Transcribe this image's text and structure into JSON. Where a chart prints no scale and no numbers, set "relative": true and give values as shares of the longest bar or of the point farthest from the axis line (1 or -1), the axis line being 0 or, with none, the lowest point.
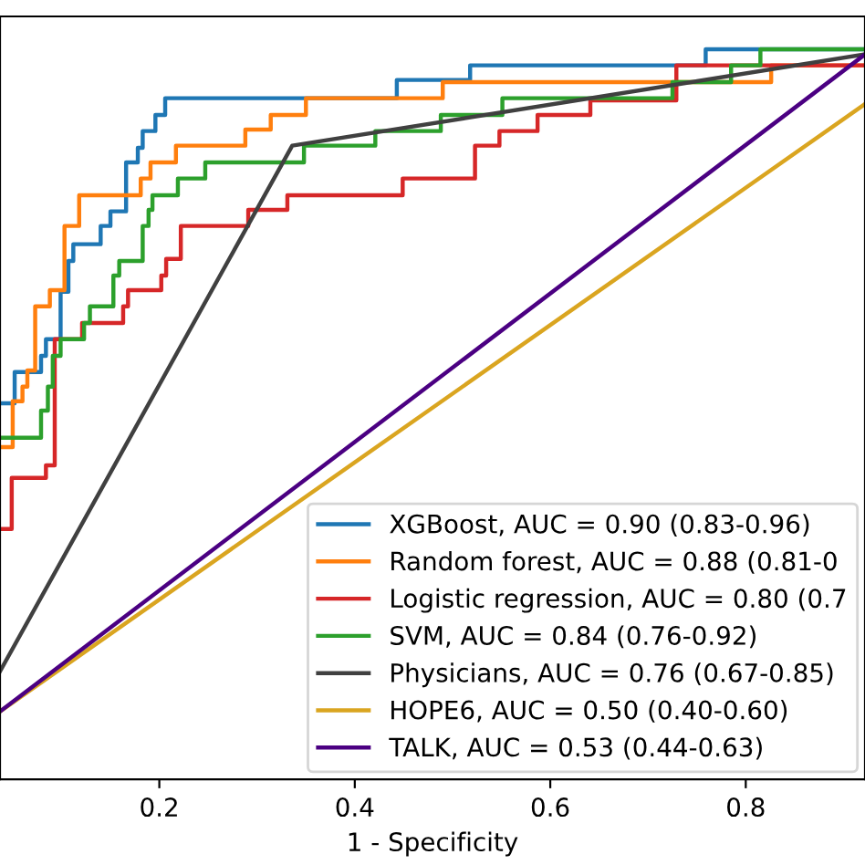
{
  "chart_data": {
    "type": "step",
    "xlabel": "1 - Specificity",
    "relative": true,
    "tick_labels": "x",
    "grid": false,
    "legend": "bottom right",
    "xlim": [
      0.037,
      0.922
    ],
    "xticks": [
      0.2,
      0.4,
      0.6,
      0.8
    ],
    "series": [
      {
        "name": "XGBoost, AUC = 0.90 (0.83-0.96)",
        "color": "#1f77b4",
        "x": [
          0.037,
          0.052,
          0.079,
          0.084,
          0.099,
          0.107,
          0.112,
          0.14,
          0.15,
          0.166,
          0.178,
          0.183,
          0.196,
          0.206,
          0.443,
          0.518,
          0.759,
          0.922
        ],
        "values": [
          0.515,
          0.558,
          0.58,
          0.603,
          0.668,
          0.71,
          0.733,
          0.758,
          0.778,
          0.845,
          0.865,
          0.888,
          0.91,
          0.933,
          0.958,
          0.978,
          1.0,
          1.0
        ]
      },
      {
        "name": "Random forest, AUC = 0.88 (0.81-0",
        "color": "#ff7f0e",
        "x": [
          0.037,
          0.05,
          0.06,
          0.065,
          0.073,
          0.088,
          0.103,
          0.118,
          0.181,
          0.191,
          0.217,
          0.288,
          0.314,
          0.35,
          0.49,
          0.826,
          0.922
        ],
        "values": [
          0.455,
          0.518,
          0.538,
          0.56,
          0.648,
          0.67,
          0.758,
          0.8,
          0.823,
          0.845,
          0.868,
          0.89,
          0.91,
          0.933,
          0.955,
          0.978,
          0.978
        ]
      },
      {
        "name": "Logistic regression, AUC = 0.80 (0.7",
        "color": "#d62728",
        "x": [
          0.037,
          0.049,
          0.084,
          0.093,
          0.121,
          0.163,
          0.168,
          0.202,
          0.207,
          0.222,
          0.291,
          0.331,
          0.449,
          0.523,
          0.548,
          0.587,
          0.641,
          0.729,
          0.922
        ],
        "values": [
          0.343,
          0.413,
          0.43,
          0.603,
          0.625,
          0.648,
          0.67,
          0.69,
          0.713,
          0.758,
          0.78,
          0.8,
          0.823,
          0.868,
          0.888,
          0.91,
          0.93,
          0.978,
          0.978
        ]
      },
      {
        "name": "SVM, AUC = 0.84 (0.76-0.92)",
        "color": "#2ca02c",
        "x": [
          0.037,
          0.079,
          0.086,
          0.091,
          0.099,
          0.123,
          0.129,
          0.153,
          0.159,
          0.183,
          0.189,
          0.193,
          0.219,
          0.247,
          0.348,
          0.421,
          0.488,
          0.551,
          0.725,
          0.785,
          0.815,
          0.922
        ],
        "values": [
          0.468,
          0.505,
          0.538,
          0.58,
          0.603,
          0.625,
          0.648,
          0.69,
          0.71,
          0.758,
          0.78,
          0.8,
          0.823,
          0.845,
          0.868,
          0.888,
          0.91,
          0.933,
          0.955,
          0.978,
          1.0,
          1.0
        ]
      },
      {
        "name": "Physicians, AUC = 0.76 (0.67-0.85)",
        "color": "#404040",
        "type": "line",
        "x": [
          0.037,
          0.336,
          0.922
        ],
        "values": [
          0.148,
          0.868,
          0.993
        ]
      },
      {
        "name": "HOPE6, AUC = 0.50 (0.40-0.60)",
        "color": "#daa520",
        "type": "line",
        "x": [
          0.037,
          0.922
        ],
        "values": [
          0.093,
          0.925
        ]
      },
      {
        "name": "TALK, AUC = 0.53 (0.44-0.63)",
        "color": "#4b0082",
        "type": "line",
        "x": [
          0.037,
          0.922
        ],
        "values": [
          0.093,
          0.993
        ]
      }
    ]
  }
}
